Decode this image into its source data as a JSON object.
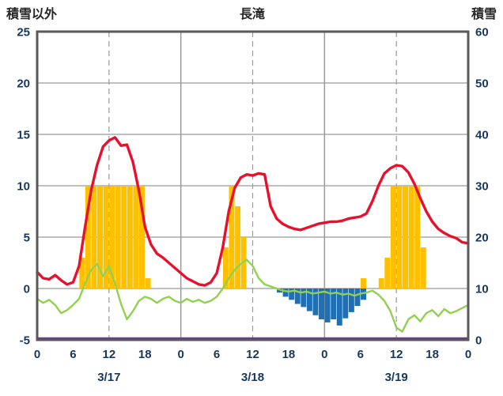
{
  "header": {
    "left_label": "積雪以外",
    "title": "長滝",
    "right_label": "積雪"
  },
  "chart_data": {
    "type": "combo",
    "title": "長滝",
    "style": {
      "grid": "#9a9a9a",
      "border": "#595959",
      "tick_text": "#17375e",
      "background": "#ffffff"
    },
    "left_axis": {
      "label": "積雪以外",
      "min": -5,
      "max": 25,
      "step": 5,
      "tick_labels": [
        "25",
        "20",
        "15",
        "10",
        "5",
        "0",
        "-5"
      ]
    },
    "right_axis": {
      "label": "積雪",
      "min": 0,
      "max": 60,
      "step": 10,
      "tick_labels": [
        "60",
        "50",
        "40",
        "30",
        "20",
        "10",
        "0"
      ]
    },
    "x": {
      "hours_total": 72,
      "tick_interval": 6,
      "tick_labels": [
        "0",
        "6",
        "12",
        "18",
        "0",
        "6",
        "12",
        "18",
        "0",
        "6",
        "12",
        "18",
        "0"
      ],
      "date_labels": [
        "3/17",
        "3/18",
        "3/19"
      ],
      "solid_gridline_hours": [
        24,
        48
      ],
      "dashed_gridline_hours": [
        12,
        36,
        60
      ]
    },
    "series": [
      {
        "name": "sunshine-bars",
        "type": "bar",
        "axis": "left",
        "color": "#ffc000",
        "values": [
          0,
          0,
          0,
          0,
          0,
          0,
          0,
          3,
          10,
          10,
          10,
          10,
          10,
          10,
          10,
          10,
          10,
          10,
          1,
          0,
          0,
          0,
          0,
          0,
          0,
          0,
          0,
          0,
          0,
          0,
          0,
          4,
          10,
          8,
          5,
          0,
          0,
          0,
          0,
          0,
          0,
          0,
          0,
          0,
          0,
          0,
          0,
          0,
          0,
          0,
          0,
          0,
          0,
          0,
          1,
          0,
          0,
          1,
          3,
          10,
          10,
          10,
          10,
          10,
          4,
          0,
          0,
          0,
          0,
          0,
          0,
          0
        ]
      },
      {
        "name": "snowfall-bars",
        "type": "bar",
        "axis": "left",
        "color": "#1f6fb5",
        "values": [
          0,
          0,
          0,
          0,
          0,
          0,
          0,
          0,
          0,
          0,
          0,
          0,
          0,
          0,
          0,
          0,
          0,
          0,
          0,
          0,
          0,
          0,
          0,
          0,
          0,
          0,
          0,
          0,
          0,
          0,
          0,
          0,
          0,
          0,
          0,
          0,
          0,
          0,
          0,
          0,
          -0.4,
          -0.8,
          -1.1,
          -1.5,
          -1.8,
          -2.2,
          -2.6,
          -3.0,
          -3.3,
          -3.0,
          -3.6,
          -2.9,
          -2.3,
          -1.7,
          -1.1,
          0,
          0,
          0,
          0,
          0,
          0,
          0,
          0,
          0,
          0,
          0,
          0,
          0,
          0,
          0,
          0,
          0
        ]
      },
      {
        "name": "secondary-line",
        "type": "line",
        "axis": "left",
        "color": "#92d050",
        "width": 2.4,
        "values": [
          -1.0,
          -1.4,
          -1.1,
          -1.6,
          -2.4,
          -2.1,
          -1.6,
          -1.0,
          0.5,
          1.8,
          2.4,
          1.2,
          2.2,
          0.5,
          -1.5,
          -3.0,
          -2.2,
          -1.2,
          -0.8,
          -1.0,
          -1.4,
          -1.0,
          -0.8,
          -1.2,
          -1.4,
          -1.0,
          -1.3,
          -1.1,
          -1.4,
          -1.2,
          -0.8,
          0.0,
          1.0,
          1.8,
          2.4,
          2.8,
          2.2,
          1.0,
          0.4,
          0.2,
          0.0,
          -0.2,
          -0.3,
          -0.2,
          -0.4,
          -0.3,
          -0.5,
          -0.4,
          -0.3,
          -0.5,
          -0.4,
          -0.6,
          -0.5,
          -0.7,
          -0.5,
          -0.4,
          -0.2,
          -0.6,
          -1.2,
          -2.2,
          -3.8,
          -4.2,
          -3.0,
          -2.6,
          -3.2,
          -2.4,
          -2.1,
          -2.7,
          -2.0,
          -2.4,
          -2.2,
          -1.9,
          -1.6
        ]
      },
      {
        "name": "temperature-line",
        "type": "line",
        "axis": "left",
        "color": "#e8112d",
        "width": 3.4,
        "values": [
          1.6,
          1.0,
          0.9,
          1.3,
          0.8,
          0.4,
          0.6,
          2.2,
          6.0,
          9.5,
          12.0,
          13.8,
          14.4,
          14.7,
          13.9,
          14.0,
          12.3,
          9.5,
          6.0,
          4.3,
          3.4,
          3.0,
          2.5,
          2.0,
          1.5,
          1.0,
          0.7,
          0.4,
          0.3,
          0.6,
          1.5,
          4.0,
          7.5,
          9.8,
          10.8,
          11.1,
          11.0,
          11.2,
          11.1,
          8.0,
          6.8,
          6.3,
          6.0,
          5.8,
          5.7,
          5.9,
          6.1,
          6.3,
          6.4,
          6.5,
          6.5,
          6.6,
          6.8,
          6.9,
          7.0,
          7.3,
          8.5,
          10.0,
          11.2,
          11.7,
          12.0,
          11.9,
          11.3,
          10.2,
          8.8,
          7.5,
          6.5,
          5.8,
          5.4,
          5.1,
          4.9,
          4.5,
          4.4
        ]
      },
      {
        "name": "snow-depth-line",
        "type": "line",
        "axis": "right",
        "color": "#7030a0",
        "width": 2.6,
        "constant": 0
      }
    ]
  }
}
